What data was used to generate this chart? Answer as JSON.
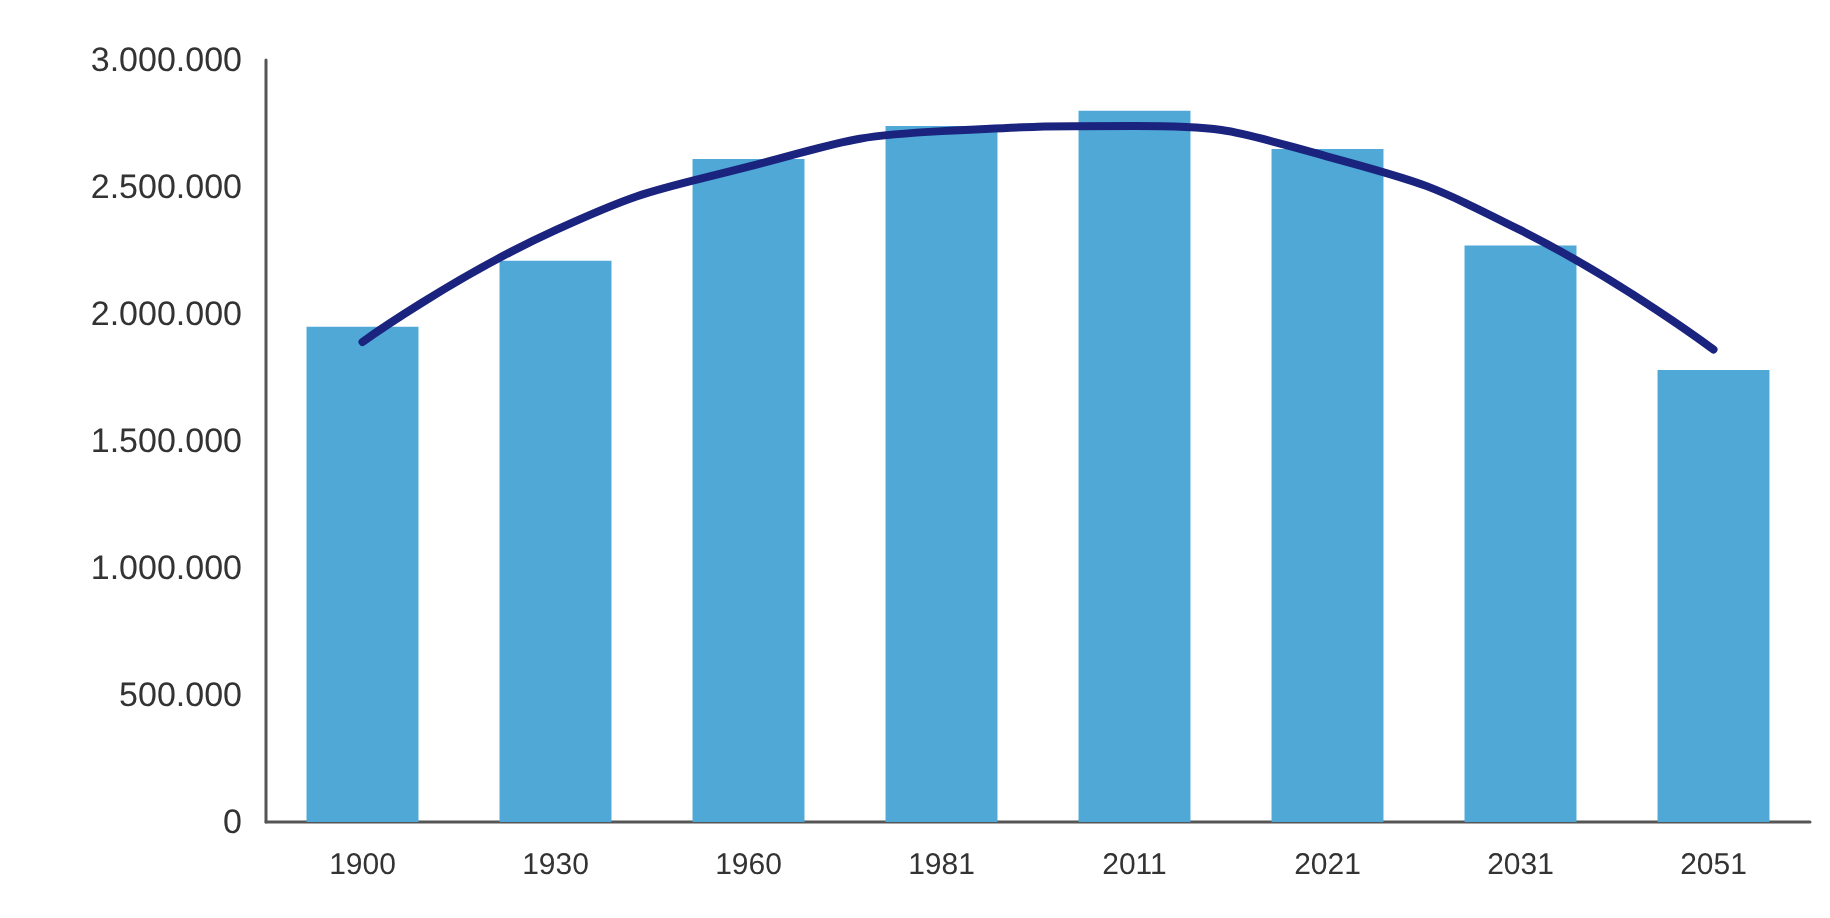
{
  "chart_data": {
    "type": "bar",
    "categories": [
      "1900",
      "1930",
      "1960",
      "1981",
      "2011",
      "2021",
      "2031",
      "2051"
    ],
    "series": [
      {
        "color": "#4fa8d6",
        "values": [
          1950000,
          2210000,
          2610000,
          2740000,
          2800000,
          2650000,
          2270000,
          1780000
        ]
      },
      {
        "type": "line",
        "color": "#1a237e",
        "values": [
          1890000,
          2330000,
          2580000,
          2720000,
          2740000,
          2620000,
          2330000,
          1860000
        ]
      }
    ],
    "ylim": [
      0,
      3000000
    ],
    "yticks": [
      {
        "value": 0,
        "label": "0"
      },
      {
        "value": 500000,
        "label": "500.000"
      },
      {
        "value": 1000000,
        "label": "1.000.000"
      },
      {
        "value": 1500000,
        "label": "1.500.000"
      },
      {
        "value": 2000000,
        "label": "2.000.000"
      },
      {
        "value": 2500000,
        "label": "2.500.000"
      },
      {
        "value": 3000000,
        "label": "3.000.000"
      }
    ],
    "grid": false,
    "marker": "none",
    "line_style": "solid"
  }
}
